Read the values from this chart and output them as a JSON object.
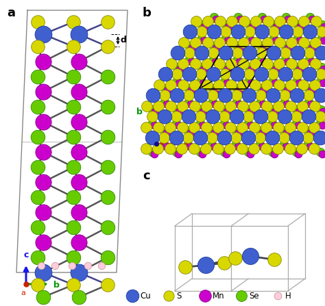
{
  "bg_color": "#ffffff",
  "atom_colors": {
    "Cu": "#4060d0",
    "S": "#d8d800",
    "Mn": "#cc00cc",
    "Se": "#66cc00",
    "H": "#ffccdd"
  },
  "atom_edges": {
    "Cu": "#1a3a9a",
    "S": "#888800",
    "Mn": "#880088",
    "Se": "#338800",
    "H": "#cc9999"
  },
  "legend_items": [
    {
      "label": "Cu",
      "color": "#4060d0",
      "edgecolor": "#1a3a9a",
      "size": 180
    },
    {
      "label": "S",
      "color": "#d8d800",
      "edgecolor": "#888800",
      "size": 120
    },
    {
      "label": "Mn",
      "color": "#cc00cc",
      "edgecolor": "#880088",
      "size": 160
    },
    {
      "label": "Se",
      "color": "#66cc00",
      "edgecolor": "#338800",
      "size": 130
    },
    {
      "label": "H",
      "color": "#ffccdd",
      "edgecolor": "#cc9999",
      "size": 60
    }
  ]
}
